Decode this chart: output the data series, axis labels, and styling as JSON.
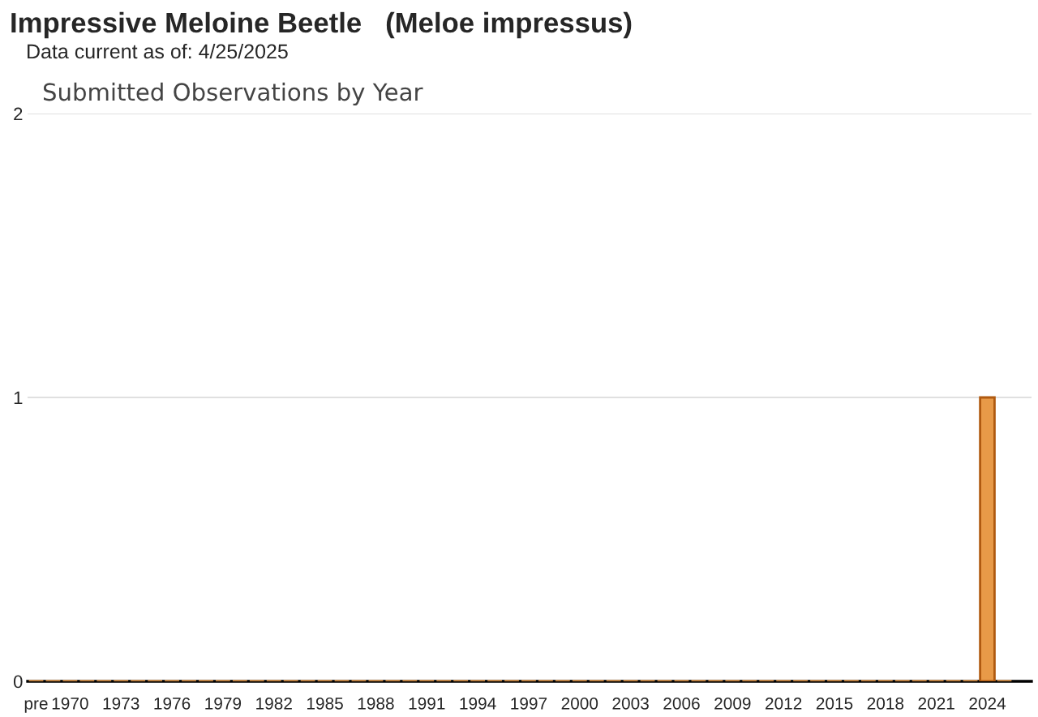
{
  "chart_data": {
    "type": "bar",
    "title": "Impressive Meloine Beetle   (Meloe impressus)",
    "subtitle": "Data current as of: 4/25/2025",
    "annotations": [
      "Submitted Observations by Year"
    ],
    "categories": [
      "pre",
      null,
      "1970",
      null,
      null,
      "1973",
      null,
      null,
      "1976",
      null,
      null,
      "1979",
      null,
      null,
      "1982",
      null,
      null,
      "1985",
      null,
      null,
      "1988",
      null,
      null,
      "1991",
      null,
      null,
      "1994",
      null,
      null,
      "1997",
      null,
      null,
      "2000",
      null,
      null,
      "2003",
      null,
      null,
      "2006",
      null,
      null,
      "2009",
      null,
      null,
      "2012",
      null,
      null,
      "2015",
      null,
      null,
      "2018",
      null,
      null,
      "2021",
      null,
      null,
      "2024",
      null
    ],
    "values": [
      0,
      0,
      0,
      0,
      0,
      0,
      0,
      0,
      0,
      0,
      0,
      0,
      0,
      0,
      0,
      0,
      0,
      0,
      0,
      0,
      0,
      0,
      0,
      0,
      0,
      0,
      0,
      0,
      0,
      0,
      0,
      0,
      0,
      0,
      0,
      0,
      0,
      0,
      0,
      0,
      0,
      0,
      0,
      0,
      0,
      0,
      0,
      0,
      0,
      0,
      0,
      0,
      0,
      0,
      0,
      0,
      1,
      0
    ],
    "color": "#e89a48",
    "ylim": [
      0,
      2
    ],
    "yticks": [
      0,
      1,
      2
    ],
    "grid": "y",
    "legend": false
  }
}
